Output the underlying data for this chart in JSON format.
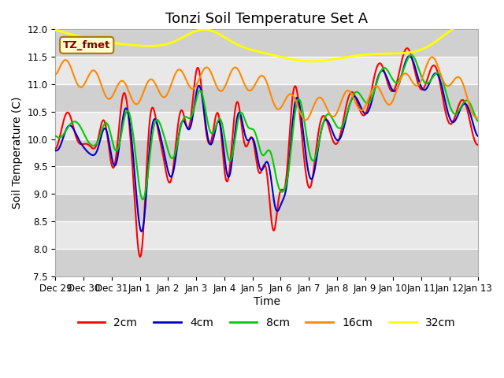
{
  "title": "Tonzi Soil Temperature Set A",
  "xlabel": "Time",
  "ylabel": "Soil Temperature (C)",
  "ylim": [
    7.5,
    12.0
  ],
  "label_text": "TZ_fmet",
  "colors_2cm": "#ff0000",
  "colors_4cm": "#0000cc",
  "colors_8cm": "#00cc00",
  "colors_16cm": "#ff8800",
  "colors_32cm": "#ffff00",
  "background_color": "#ffffff",
  "plot_bg_light": "#e8e8e8",
  "plot_bg_dark": "#d0d0d0",
  "x_tick_labels": [
    "Dec 29",
    "Dec 30",
    "Dec 31",
    "Jan 1",
    "Jan 2",
    "Jan 3",
    "Jan 4",
    "Jan 5",
    "Jan 6",
    "Jan 7",
    "Jan 8",
    "Jan 9",
    "Jan 10",
    "Jan 11",
    "Jan 12",
    "Jan 13"
  ],
  "y_ticks": [
    7.5,
    8.0,
    8.5,
    9.0,
    9.5,
    10.0,
    10.5,
    11.0,
    11.5,
    12.0
  ],
  "title_fontsize": 13,
  "label_fontsize": 10,
  "tick_fontsize": 8.5,
  "legend_fontsize": 10,
  "line_width": 1.5
}
